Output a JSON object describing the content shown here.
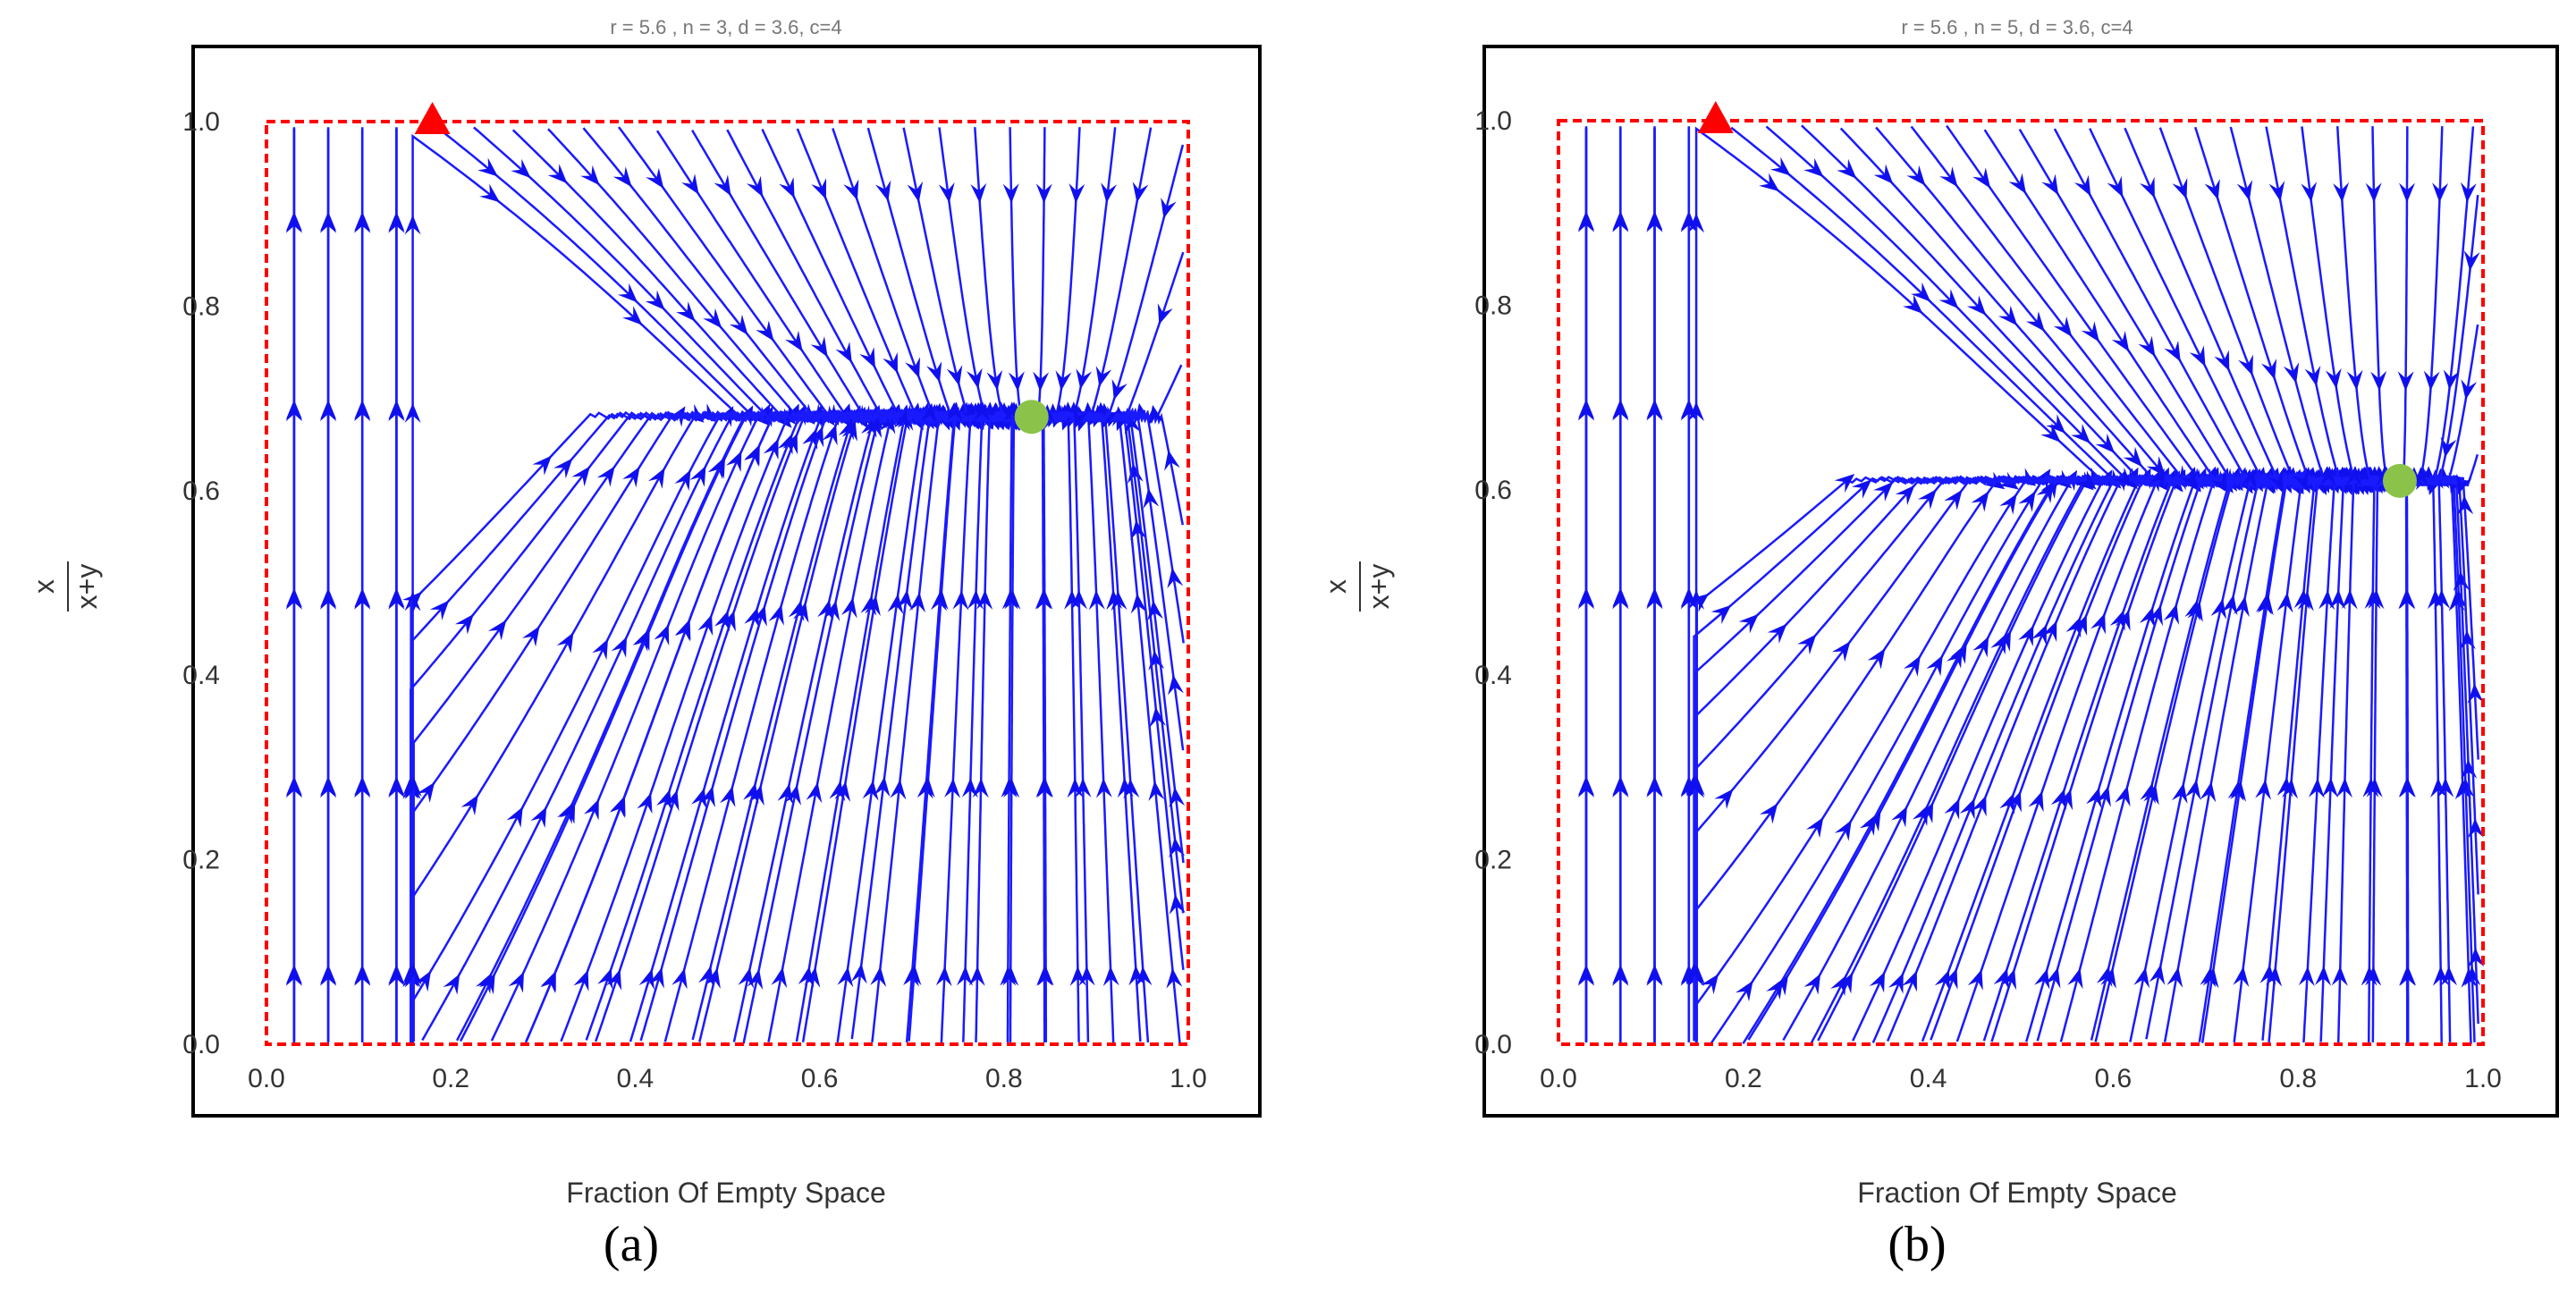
{
  "colors": {
    "stream": "#1a1aff",
    "arrow": "#1010ee",
    "domain_box": "#ff0000",
    "unstable_point": "#ff0000",
    "stable_point": "#8bc34a"
  },
  "chart_data": [
    {
      "panel": "(a)",
      "type": "streamplot",
      "title": "r = 5.6 ,  n = 3, d = 3.6, c=4",
      "xlabel": "Fraction Of Empty Space",
      "ylabel_numerator": "x",
      "ylabel_denominator": "x+y",
      "xlim": [
        -0.08,
        1.08
      ],
      "ylim": [
        -0.08,
        1.08
      ],
      "xticks": [
        0.0,
        0.2,
        0.4,
        0.6,
        0.8,
        1.0
      ],
      "yticks": [
        0.0,
        0.2,
        0.4,
        0.6,
        0.8,
        1.0
      ],
      "xtick_labels": [
        "0.0",
        "0.2",
        "0.4",
        "0.6",
        "0.8",
        "1.0"
      ],
      "ytick_labels": [
        "0.0",
        "0.2",
        "0.4",
        "0.6",
        "0.8",
        "1.0"
      ],
      "domain_box": {
        "x": [
          0,
          1
        ],
        "y": [
          0,
          1
        ]
      },
      "unstable_point": {
        "x": 0.18,
        "y": 1.0,
        "marker": "triangle"
      },
      "stable_point": {
        "x": 0.83,
        "y": 0.68,
        "marker": "circle"
      },
      "vertical_threshold": 0.18
    },
    {
      "panel": "(b)",
      "type": "streamplot",
      "title": "r = 5.6 ,  n = 5, d = 3.6, c=4",
      "xlabel": "Fraction Of Empty Space",
      "ylabel_numerator": "x",
      "ylabel_denominator": "x+y",
      "xlim": [
        -0.08,
        1.08
      ],
      "ylim": [
        -0.08,
        1.08
      ],
      "xticks": [
        0.0,
        0.2,
        0.4,
        0.6,
        0.8,
        1.0
      ],
      "yticks": [
        0.0,
        0.2,
        0.4,
        0.6,
        0.8,
        1.0
      ],
      "xtick_labels": [
        "0.0",
        "0.2",
        "0.4",
        "0.6",
        "0.8",
        "1.0"
      ],
      "ytick_labels": [
        "0.0",
        "0.2",
        "0.4",
        "0.6",
        "0.8",
        "1.0"
      ],
      "domain_box": {
        "x": [
          0,
          1
        ],
        "y": [
          0,
          1
        ]
      },
      "unstable_point": {
        "x": 0.17,
        "y": 1.0,
        "marker": "triangle"
      },
      "stable_point": {
        "x": 0.91,
        "y": 0.61,
        "marker": "circle"
      },
      "vertical_threshold": 0.17
    }
  ]
}
